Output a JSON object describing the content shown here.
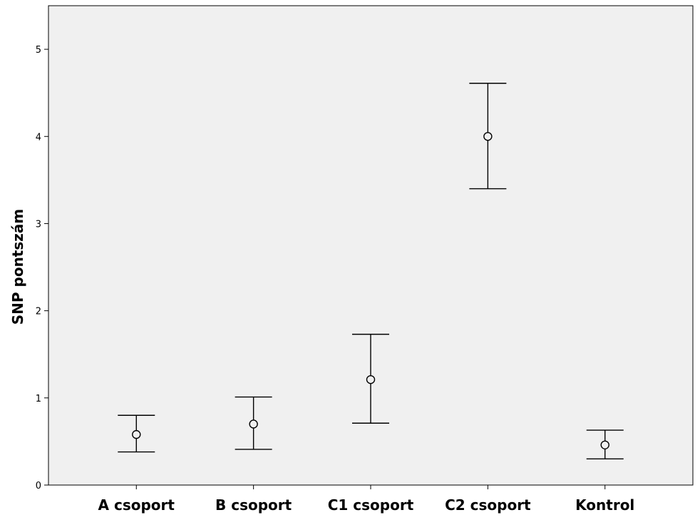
{
  "chart_data": {
    "type": "scatter",
    "subtype": "error-bar",
    "title": "",
    "xlabel": "",
    "ylabel": "SNP pontszám",
    "ylim": [
      0,
      5.5
    ],
    "y_ticks": [
      0,
      1,
      2,
      3,
      4,
      5
    ],
    "grid": false,
    "categories": [
      "A csoport",
      "B csoport",
      "C1 csoport",
      "C2 csoport",
      "Kontrol"
    ],
    "series": [
      {
        "mean": [
          0.58,
          0.7,
          1.21,
          4.0,
          0.46
        ],
        "lower": [
          0.38,
          0.41,
          0.71,
          3.4,
          0.3
        ],
        "upper": [
          0.8,
          1.01,
          1.73,
          4.61,
          0.63
        ]
      }
    ],
    "colors": {
      "plot_background": "#f0f0f0",
      "stroke": "#000000"
    }
  }
}
